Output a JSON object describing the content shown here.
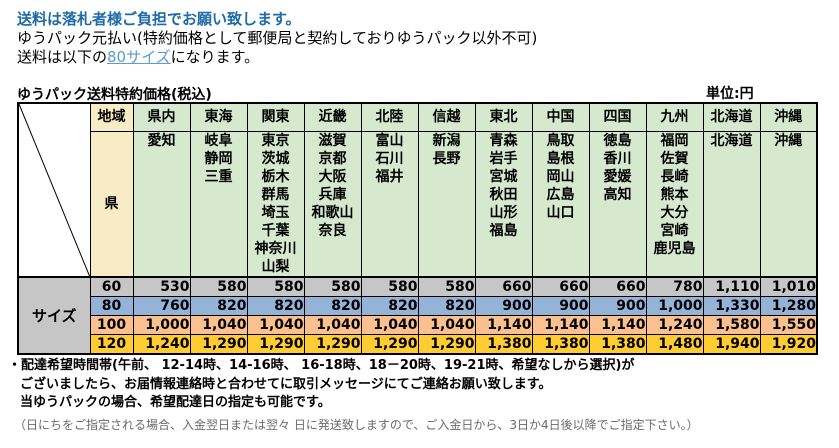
{
  "header": {
    "notice1": "送料は落札者様ご負担でお願い致します。",
    "notice2": "ゆうパック元払い(特約価格として郵便局と契約しておりゆうパック以外不可)",
    "notice3_prefix": "送料は以下の",
    "notice3_link": "80サイズ",
    "notice3_suffix": "になります。"
  },
  "table": {
    "title": "ゆうパック送料特約価格(税込)",
    "unit": "単位:円",
    "region_label": "地域",
    "pref_label": "県",
    "size_label": "サイズ",
    "regions": [
      {
        "name": "県内",
        "prefectures": [
          "愛知"
        ]
      },
      {
        "name": "東海",
        "prefectures": [
          "岐阜",
          "静岡",
          "三重"
        ]
      },
      {
        "name": "関東",
        "prefectures": [
          "東京",
          "茨城",
          "栃木",
          "群馬",
          "埼玉",
          "千葉",
          "神奈川",
          "山梨"
        ]
      },
      {
        "name": "近畿",
        "prefectures": [
          "滋賀",
          "京都",
          "大阪",
          "兵庫",
          "和歌山",
          "奈良"
        ]
      },
      {
        "name": "北陸",
        "prefectures": [
          "富山",
          "石川",
          "福井"
        ]
      },
      {
        "name": "信越",
        "prefectures": [
          "新潟",
          "長野"
        ]
      },
      {
        "name": "東北",
        "prefectures": [
          "青森",
          "岩手",
          "宮城",
          "秋田",
          "山形",
          "福島"
        ]
      },
      {
        "name": "中国",
        "prefectures": [
          "鳥取",
          "島根",
          "岡山",
          "広島",
          "山口"
        ]
      },
      {
        "name": "四国",
        "prefectures": [
          "徳島",
          "香川",
          "愛媛",
          "高知"
        ]
      },
      {
        "name": "九州",
        "prefectures": [
          "福岡",
          "佐賀",
          "長崎",
          "熊本",
          "大分",
          "宮崎",
          "鹿児島"
        ]
      },
      {
        "name": "北海道",
        "prefectures": [
          "北海道"
        ]
      },
      {
        "name": "沖縄",
        "prefectures": [
          "沖縄"
        ]
      }
    ],
    "sizes": [
      {
        "label": "60",
        "values": [
          "530",
          "580",
          "580",
          "580",
          "580",
          "580",
          "660",
          "660",
          "660",
          "780",
          "1,110",
          "1,010"
        ]
      },
      {
        "label": "80",
        "values": [
          "760",
          "820",
          "820",
          "820",
          "820",
          "820",
          "900",
          "900",
          "900",
          "1,000",
          "1,330",
          "1,280"
        ]
      },
      {
        "label": "100",
        "values": [
          "1,000",
          "1,040",
          "1,040",
          "1,040",
          "1,040",
          "1,040",
          "1,140",
          "1,140",
          "1,140",
          "1,240",
          "1,580",
          "1,550"
        ]
      },
      {
        "label": "120",
        "values": [
          "1,240",
          "1,290",
          "1,290",
          "1,290",
          "1,290",
          "1,290",
          "1,380",
          "1,380",
          "1,380",
          "1,480",
          "1,940",
          "1,920"
        ]
      }
    ]
  },
  "colors": {
    "notice_blue": "#1d6ba8",
    "link_blue": "#5a9bd2",
    "header_green": "#d6e8ce",
    "label_beige": "#f8ecc6",
    "size_gray": "#c6c6c6",
    "row_60": "#c6c6c6",
    "row_80": "#95b3d7",
    "row_100": "#fac090",
    "row_120": "#ffcc33",
    "note_gray": "#6a6a6a"
  },
  "notes": {
    "line1": "・配達希望時間帯(午前、 12-14時、14-16時、 16-18時、18－20時、19-21時、希望なしから選択)が",
    "line2": "ございましたら、お届情報連絡時と合わせてに取引メッセージにてご連絡お願い致します。",
    "line3": "当ゆうパックの場合、希望配達日の指定も可能です。",
    "line4": "（日にちをご指定される場合、入金翌日または翌々 日に発送致しますので、ご入金日から、3日か4日後以降でご指定下さい。）"
  }
}
